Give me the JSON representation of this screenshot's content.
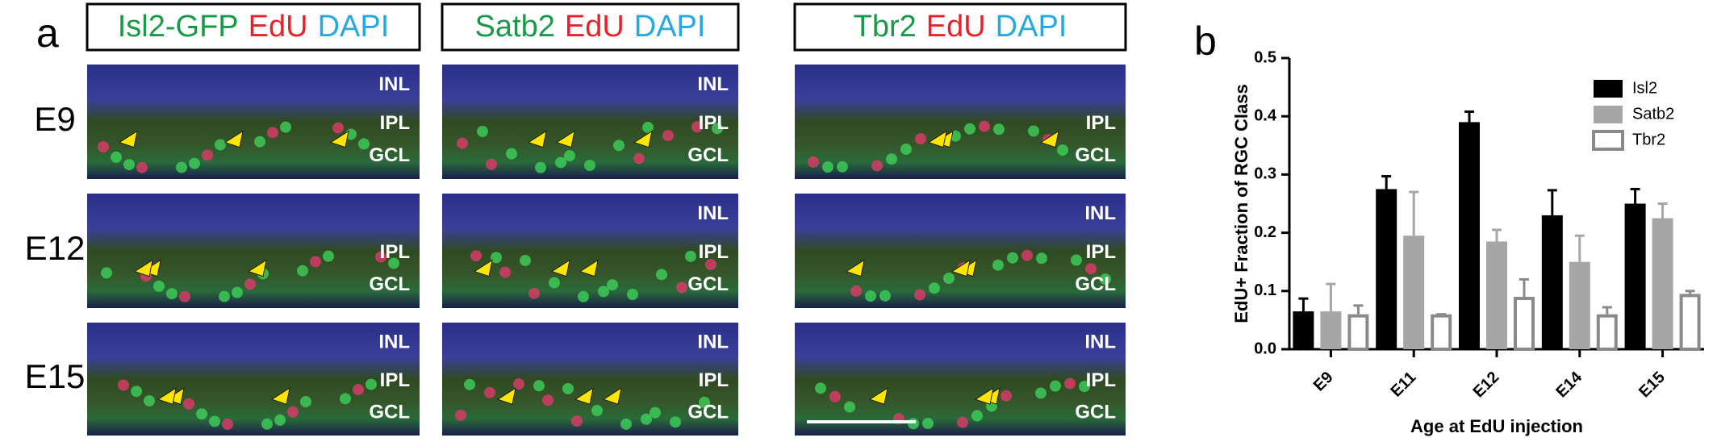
{
  "panel_a": {
    "label": "a",
    "headers": [
      [
        "Isl2-GFP",
        "EdU",
        "DAPI"
      ],
      [
        "Satb2",
        "EdU",
        "DAPI"
      ],
      [
        "Tbr2",
        "EdU",
        "DAPI"
      ]
    ],
    "rows": [
      "E9",
      "E12",
      "E15"
    ],
    "layers": [
      [
        [
          "INL",
          "IPL",
          "GCL"
        ],
        [
          "INL",
          "IPL",
          "GCL"
        ],
        [
          "IPL",
          "GCL"
        ]
      ],
      [
        [
          "IPL",
          "GCL"
        ],
        [
          "INL",
          "IPL",
          "GCL"
        ],
        [
          "INL",
          "IPL",
          "GCL"
        ]
      ],
      [
        [
          "INL",
          "IPL",
          "GCL"
        ],
        [
          "INL",
          "IPL",
          "GCL"
        ],
        [
          "INL",
          "IPL",
          "GCL"
        ]
      ]
    ]
  },
  "chart_data": {
    "type": "bar",
    "panel_label": "b",
    "ylabel": "EdU+ Fraction of RGC Class",
    "xlabel": "Age at EdU injection",
    "categories": [
      "E9",
      "E11",
      "E12",
      "E14",
      "E15"
    ],
    "series": [
      {
        "name": "Isl2",
        "color": "#000000",
        "values": [
          0.065,
          0.275,
          0.39,
          0.23,
          0.25
        ],
        "errors": [
          0.022,
          0.022,
          0.018,
          0.043,
          0.025
        ]
      },
      {
        "name": "Satb2",
        "color": "#a6a6a6",
        "values": [
          0.065,
          0.195,
          0.185,
          0.15,
          0.225
        ],
        "errors": [
          0.047,
          0.075,
          0.02,
          0.045,
          0.025
        ]
      },
      {
        "name": "Tbr2",
        "color": "#ffffff",
        "values": [
          0.06,
          0.06,
          0.09,
          0.06,
          0.095
        ],
        "errors": [
          0.015,
          0,
          0.03,
          0.012,
          0.005
        ]
      }
    ],
    "ylim": [
      0,
      0.5
    ],
    "yticks": [
      {
        "value": 0,
        "label": "0.0"
      },
      0.1,
      0.2,
      0.3,
      0.4,
      0.5
    ],
    "legend": "top-right"
  }
}
